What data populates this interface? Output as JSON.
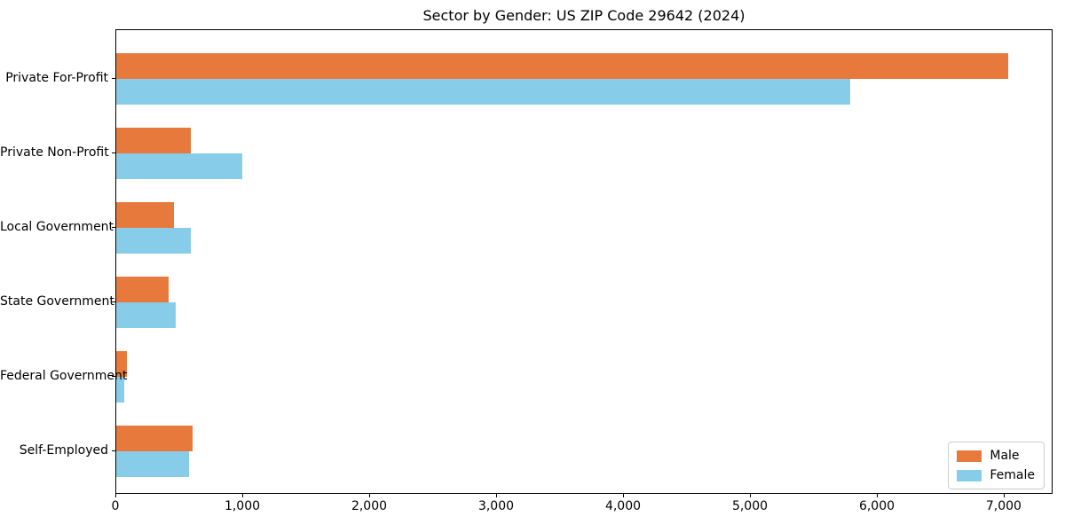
{
  "chart_data": {
    "type": "bar",
    "orientation": "horizontal",
    "title": "Sector by Gender: US ZIP Code 29642 (2024)",
    "categories": [
      "Private For-Profit",
      "Private Non-Profit",
      "Local Government",
      "State Government",
      "Federal Government",
      "Self-Employed"
    ],
    "series": [
      {
        "name": "Male",
        "color": "#e8793d",
        "values": [
          7030,
          590,
          455,
          415,
          85,
          600
        ]
      },
      {
        "name": "Female",
        "color": "#87cde9",
        "values": [
          5780,
          990,
          585,
          465,
          63,
          570
        ]
      }
    ],
    "xlabel": "",
    "ylabel": "",
    "xlim": [
      0,
      7385
    ],
    "xticks": [
      0,
      1000,
      2000,
      3000,
      4000,
      5000,
      6000,
      7000
    ],
    "xtick_labels": [
      "0",
      "1,000",
      "2,000",
      "3,000",
      "4,000",
      "5,000",
      "6,000",
      "7,000"
    ],
    "grid": false,
    "legend_position": "lower right"
  }
}
